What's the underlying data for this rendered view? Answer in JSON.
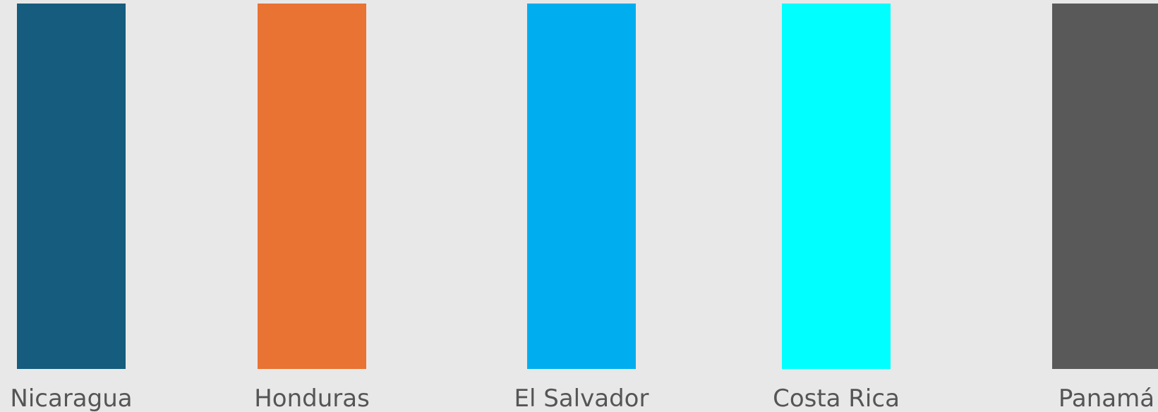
{
  "chart_data": {
    "type": "bar",
    "categories": [
      "Nicaragua",
      "Honduras",
      "El Salvador",
      "Costa Rica",
      "Panamá"
    ],
    "values": [
      1,
      1,
      1,
      1,
      1
    ],
    "colors": [
      "#155c7e",
      "#e97332",
      "#00aeef",
      "#00ffff",
      "#595959"
    ],
    "title": "",
    "xlabel": "",
    "ylabel": "",
    "ylim": [
      0,
      1
    ],
    "grid": false,
    "legend": "none"
  }
}
